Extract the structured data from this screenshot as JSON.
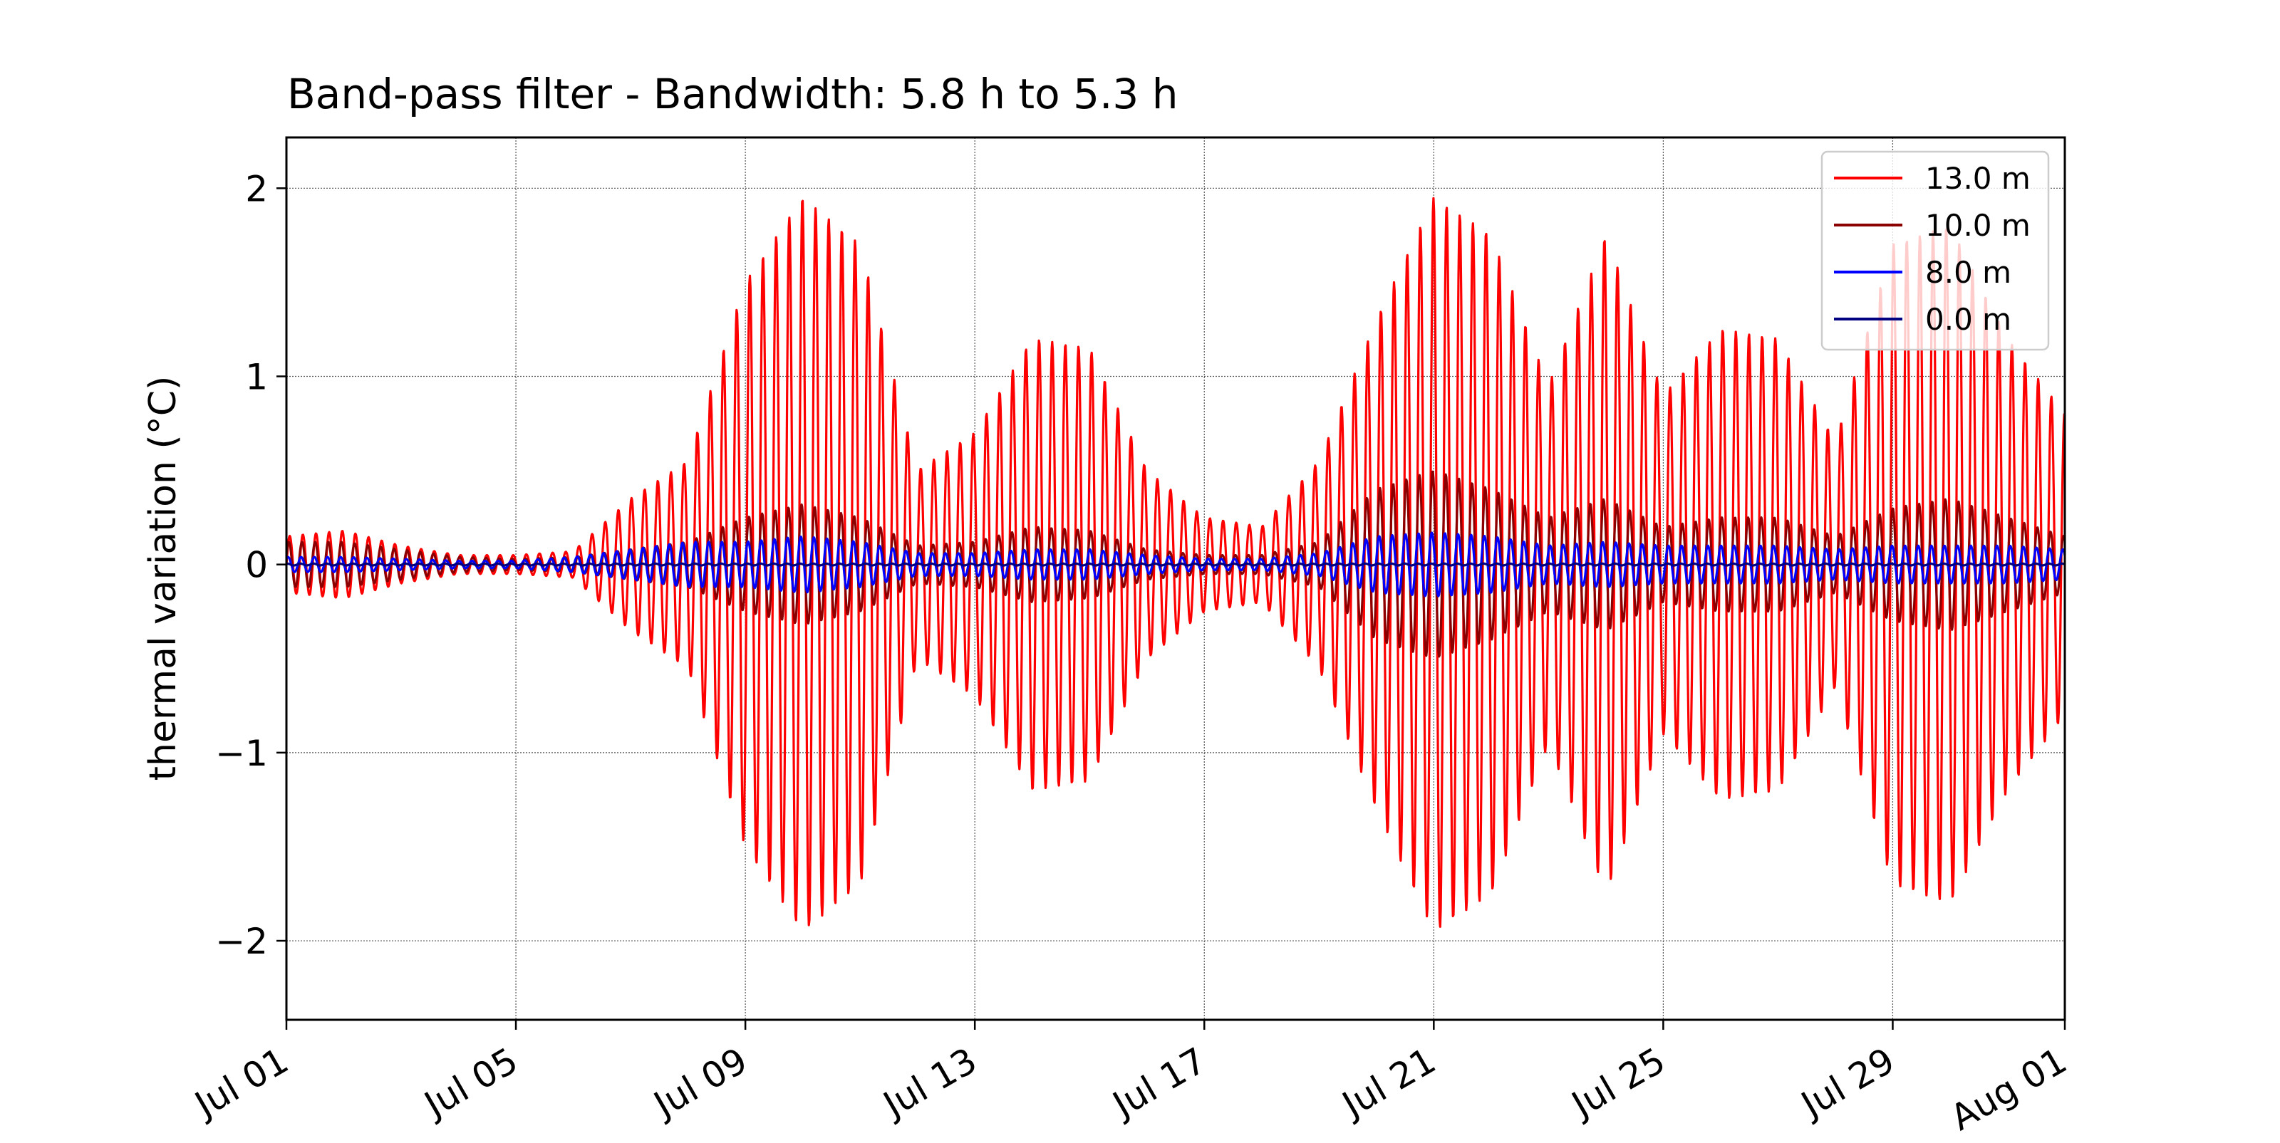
{
  "chart_data": {
    "type": "line",
    "title": "Band-pass filter - Bandwidth: 5.8 h to 5.3 h",
    "xlabel": "",
    "ylabel": "thermal variation (°C)",
    "x_start": "2023-07-01",
    "x_end": "2023-08-01",
    "ylim": [
      -2.42,
      2.27
    ],
    "grid": true,
    "legend_position": "top-right",
    "x_ticks": [
      "Jul 01",
      "Jul 05",
      "Jul 09",
      "Jul 13",
      "Jul 17",
      "Jul 21",
      "Jul 25",
      "Jul 29",
      "Aug 01"
    ],
    "x_tick_dates": [
      "2023-07-01",
      "2023-07-05",
      "2023-07-09",
      "2023-07-13",
      "2023-07-17",
      "2023-07-21",
      "2023-07-25",
      "2023-07-29",
      "2023-08-01"
    ],
    "y_ticks": [
      -2,
      -1,
      0,
      1,
      2
    ],
    "y_tick_labels": [
      "−2",
      "−1",
      "0",
      "1",
      "2"
    ],
    "oscillation_period_hours": 5.5,
    "series": [
      {
        "name": "13.0 m",
        "color": "#ff0000",
        "envelope": {
          "days": [
            "2023-07-01",
            "2023-07-02",
            "2023-07-03",
            "2023-07-04",
            "2023-07-05",
            "2023-07-06",
            "2023-07-07",
            "2023-07-08",
            "2023-07-09",
            "2023-07-10",
            "2023-07-11",
            "2023-07-12",
            "2023-07-13",
            "2023-07-14",
            "2023-07-15",
            "2023-07-16",
            "2023-07-17",
            "2023-07-18",
            "2023-07-19",
            "2023-07-20",
            "2023-07-21",
            "2023-07-22",
            "2023-07-23",
            "2023-07-24",
            "2023-07-25",
            "2023-07-26",
            "2023-07-27",
            "2023-07-28",
            "2023-07-29",
            "2023-07-30",
            "2023-07-31",
            "2023-08-01"
          ],
          "amplitude": [
            0.15,
            0.18,
            0.1,
            0.05,
            0.05,
            0.07,
            0.35,
            0.55,
            1.5,
            1.95,
            1.7,
            0.5,
            0.7,
            1.2,
            1.15,
            0.5,
            0.25,
            0.2,
            0.55,
            1.3,
            1.95,
            1.75,
            0.95,
            1.75,
            0.9,
            1.25,
            1.2,
            0.65,
            1.7,
            1.8,
            1.2,
            0.8
          ]
        }
      },
      {
        "name": "10.0 m",
        "color": "#8b0000",
        "envelope": {
          "days": [
            "2023-07-01",
            "2023-07-02",
            "2023-07-03",
            "2023-07-04",
            "2023-07-05",
            "2023-07-06",
            "2023-07-07",
            "2023-07-08",
            "2023-07-09",
            "2023-07-10",
            "2023-07-11",
            "2023-07-12",
            "2023-07-13",
            "2023-07-14",
            "2023-07-15",
            "2023-07-16",
            "2023-07-17",
            "2023-07-18",
            "2023-07-19",
            "2023-07-20",
            "2023-07-21",
            "2023-07-22",
            "2023-07-23",
            "2023-07-24",
            "2023-07-25",
            "2023-07-26",
            "2023-07-27",
            "2023-07-28",
            "2023-07-29",
            "2023-07-30",
            "2023-07-31",
            "2023-08-01"
          ],
          "amplitude": [
            0.12,
            0.12,
            0.08,
            0.04,
            0.03,
            0.04,
            0.08,
            0.12,
            0.25,
            0.32,
            0.25,
            0.1,
            0.12,
            0.2,
            0.18,
            0.08,
            0.05,
            0.05,
            0.12,
            0.4,
            0.5,
            0.4,
            0.25,
            0.35,
            0.2,
            0.25,
            0.25,
            0.15,
            0.3,
            0.35,
            0.25,
            0.15
          ]
        }
      },
      {
        "name": "8.0 m",
        "color": "#0000ff",
        "envelope": {
          "days": [
            "2023-07-01",
            "2023-07-02",
            "2023-07-03",
            "2023-07-04",
            "2023-07-05",
            "2023-07-06",
            "2023-07-07",
            "2023-07-08",
            "2023-07-09",
            "2023-07-10",
            "2023-07-11",
            "2023-07-12",
            "2023-07-13",
            "2023-07-14",
            "2023-07-15",
            "2023-07-16",
            "2023-07-17",
            "2023-07-18",
            "2023-07-19",
            "2023-07-20",
            "2023-07-21",
            "2023-07-22",
            "2023-07-23",
            "2023-07-24",
            "2023-07-25",
            "2023-07-26",
            "2023-07-27",
            "2023-07-28",
            "2023-07-29",
            "2023-07-30",
            "2023-07-31",
            "2023-08-01"
          ],
          "amplitude": [
            0.04,
            0.04,
            0.03,
            0.02,
            0.02,
            0.04,
            0.08,
            0.12,
            0.12,
            0.15,
            0.12,
            0.06,
            0.06,
            0.08,
            0.08,
            0.05,
            0.03,
            0.03,
            0.06,
            0.15,
            0.17,
            0.15,
            0.1,
            0.12,
            0.1,
            0.1,
            0.1,
            0.08,
            0.1,
            0.1,
            0.1,
            0.08
          ]
        }
      },
      {
        "name": "0.0 m",
        "color": "#000080",
        "envelope": {
          "days": [
            "2023-07-01",
            "2023-07-15",
            "2023-08-01"
          ],
          "amplitude": [
            0.005,
            0.005,
            0.005
          ]
        }
      }
    ]
  }
}
